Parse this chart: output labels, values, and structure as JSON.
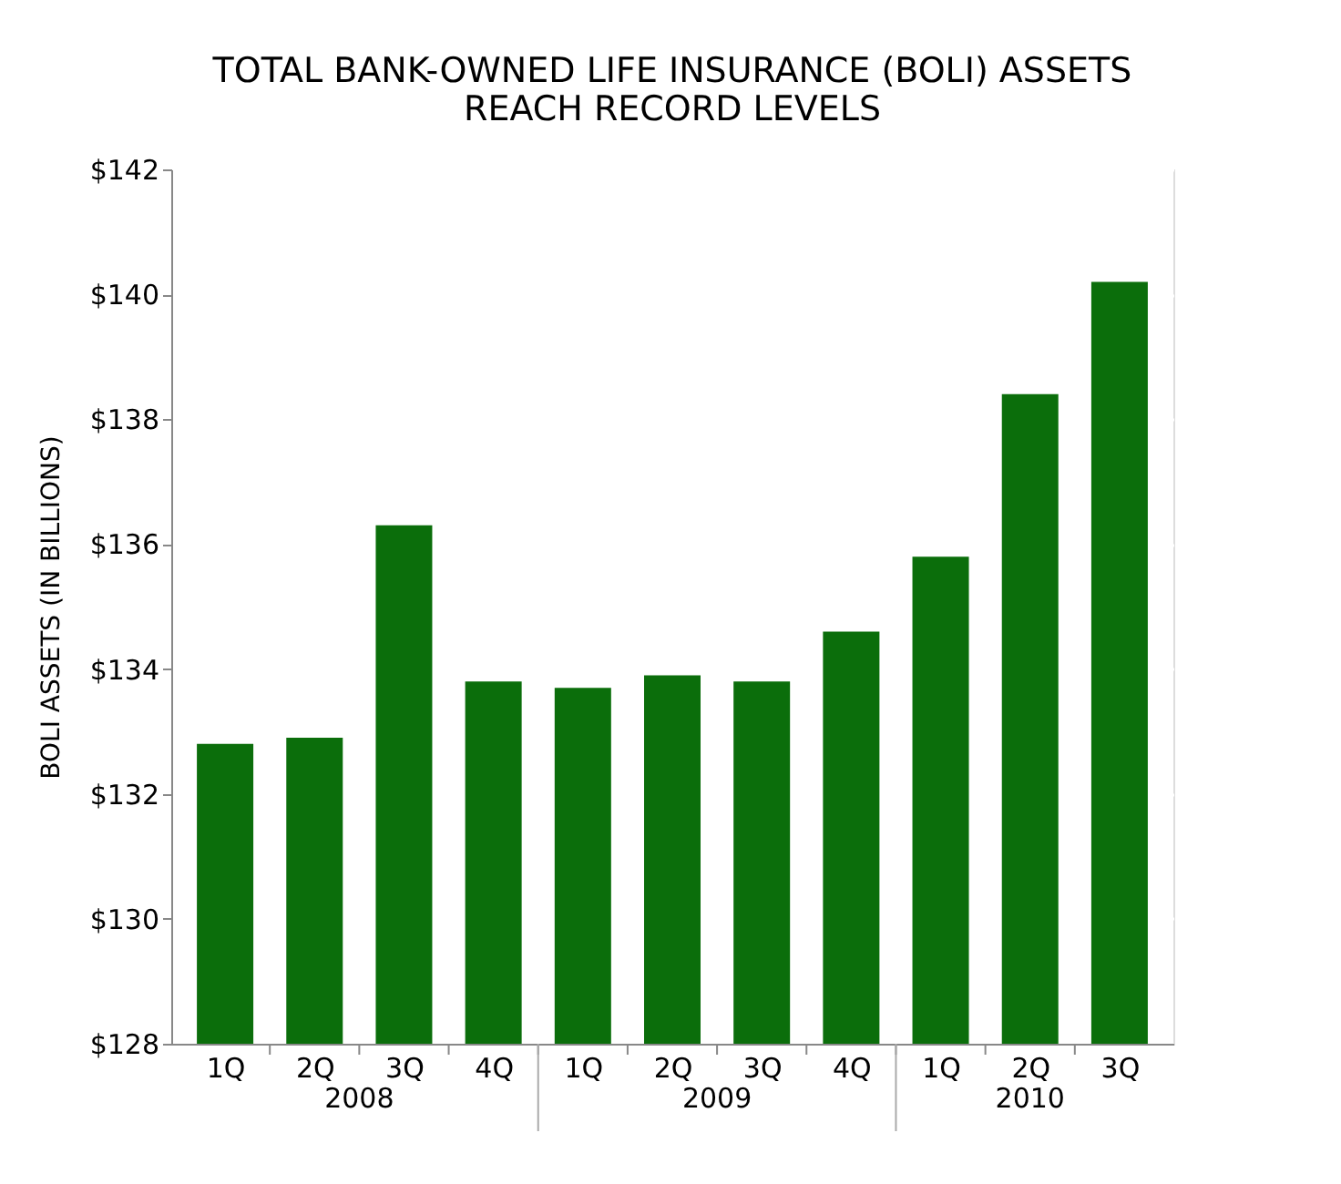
{
  "chart_data": {
    "type": "bar",
    "title": "TOTAL BANK-OWNED LIFE INSURANCE (BOLI) ASSETS\nREACH RECORD LEVELS",
    "ylabel": "BOLI ASSETS (IN BILLIONS)",
    "categories": [
      "1Q",
      "2Q",
      "3Q",
      "4Q",
      "1Q",
      "2Q",
      "3Q",
      "4Q",
      "1Q",
      "2Q",
      "3Q"
    ],
    "annotations": [
      "2008",
      "2009",
      "2010"
    ],
    "values": [
      132.8,
      132.9,
      136.3,
      133.8,
      133.7,
      133.9,
      133.8,
      134.6,
      135.8,
      138.4,
      140.2
    ],
    "color": "#0b6e0b",
    "ylim": [
      128,
      142
    ],
    "yticks": [
      {
        "value": 128,
        "label": "$128"
      },
      {
        "value": 130,
        "label": "$130"
      },
      {
        "value": 132,
        "label": "$132"
      },
      {
        "value": 134,
        "label": "$134"
      },
      {
        "value": 136,
        "label": "$136"
      },
      {
        "value": 138,
        "label": "$138"
      },
      {
        "value": 140,
        "label": "$140"
      },
      {
        "value": 142,
        "label": "$142"
      }
    ],
    "grid": "y"
  }
}
